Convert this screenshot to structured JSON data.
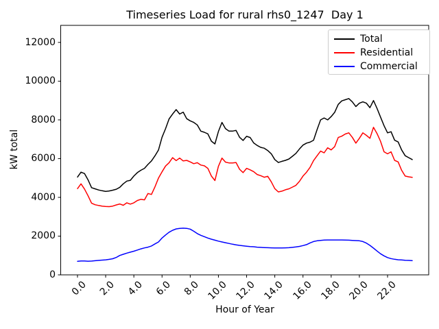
{
  "figure": {
    "background": "#ffffff",
    "axes_edge_color": "#000000",
    "legend_border_color": "#cccccc"
  },
  "chart_data": {
    "type": "line",
    "title": "Timeseries Load for rural rhs0_1247  Day 1",
    "xlabel": "Hour of Year",
    "ylabel": "kW total",
    "xlim": [
      -1.19,
      24.92
    ],
    "ylim": [
      0,
      12880
    ],
    "grid": false,
    "legend_position": "upper right",
    "xticks": {
      "values": [
        0,
        2,
        4,
        6,
        8,
        10,
        12,
        14,
        16,
        18,
        20,
        22
      ],
      "labels": [
        "0.0",
        "2.0",
        "4.0",
        "6.0",
        "8.0",
        "10.0",
        "12.0",
        "14.0",
        "16.0",
        "18.0",
        "20.0",
        "22.0"
      ],
      "rotation": 45
    },
    "yticks": {
      "values": [
        0,
        2000,
        4000,
        6000,
        8000,
        10000,
        12000
      ],
      "labels": [
        "0",
        "2000",
        "4000",
        "6000",
        "8000",
        "10000",
        "12000"
      ]
    },
    "x_start": 0,
    "x_step": 0.25,
    "x": [
      0,
      0.25,
      0.5,
      0.75,
      1,
      1.25,
      1.5,
      1.75,
      2,
      2.25,
      2.5,
      2.75,
      3,
      3.25,
      3.5,
      3.75,
      4,
      4.25,
      4.5,
      4.75,
      5,
      5.25,
      5.5,
      5.75,
      6,
      6.25,
      6.5,
      6.75,
      7,
      7.25,
      7.5,
      7.75,
      8,
      8.25,
      8.5,
      8.75,
      9,
      9.25,
      9.5,
      9.75,
      10,
      10.25,
      10.5,
      10.75,
      11,
      11.25,
      11.5,
      11.75,
      12,
      12.25,
      12.5,
      12.75,
      13,
      13.25,
      13.5,
      13.75,
      14,
      14.25,
      14.5,
      14.75,
      15,
      15.25,
      15.5,
      15.75,
      16,
      16.25,
      16.5,
      16.75,
      17,
      17.25,
      17.5,
      17.75,
      18,
      18.25,
      18.5,
      18.75,
      19,
      19.25,
      19.5,
      19.75,
      20,
      20.25,
      20.5,
      20.75,
      21,
      21.25,
      21.5,
      21.75,
      22,
      22.25,
      22.5,
      22.75,
      23,
      23.25,
      23.5,
      23.75
    ],
    "series": [
      {
        "name": "Total",
        "color": "#000000",
        "line_width": 1.5,
        "values": [
          5050,
          5300,
          5230,
          4900,
          4500,
          4440,
          4380,
          4340,
          4310,
          4330,
          4370,
          4420,
          4520,
          4700,
          4840,
          4880,
          5100,
          5280,
          5400,
          5500,
          5700,
          5880,
          6150,
          6450,
          7100,
          7550,
          8050,
          8300,
          8530,
          8300,
          8400,
          8060,
          7950,
          7870,
          7740,
          7420,
          7360,
          7280,
          6900,
          6760,
          7400,
          7870,
          7550,
          7420,
          7420,
          7460,
          7100,
          6940,
          7150,
          7090,
          6810,
          6680,
          6580,
          6540,
          6420,
          6250,
          5950,
          5800,
          5860,
          5910,
          5980,
          6120,
          6270,
          6500,
          6700,
          6800,
          6850,
          6950,
          7500,
          8000,
          8100,
          8000,
          8170,
          8390,
          8800,
          8980,
          9040,
          9100,
          8930,
          8690,
          8860,
          8930,
          8860,
          8630,
          9000,
          8600,
          8150,
          7700,
          7330,
          7390,
          6950,
          6860,
          6450,
          6150,
          6050,
          5950
        ]
      },
      {
        "name": "Residential",
        "color": "#ff0000",
        "line_width": 1.5,
        "values": [
          4450,
          4700,
          4430,
          4080,
          3700,
          3620,
          3580,
          3550,
          3530,
          3520,
          3550,
          3610,
          3660,
          3590,
          3720,
          3650,
          3720,
          3840,
          3900,
          3870,
          4200,
          4150,
          4550,
          5000,
          5320,
          5620,
          5790,
          6050,
          5900,
          6030,
          5880,
          5910,
          5830,
          5740,
          5790,
          5670,
          5630,
          5500,
          5100,
          4870,
          5600,
          6030,
          5820,
          5780,
          5780,
          5800,
          5450,
          5280,
          5500,
          5420,
          5330,
          5180,
          5120,
          5040,
          5090,
          4800,
          4450,
          4280,
          4320,
          4390,
          4440,
          4530,
          4620,
          4830,
          5100,
          5300,
          5550,
          5900,
          6150,
          6390,
          6300,
          6560,
          6450,
          6620,
          7090,
          7160,
          7270,
          7330,
          7100,
          6800,
          7050,
          7330,
          7200,
          7050,
          7620,
          7300,
          6900,
          6350,
          6250,
          6350,
          5910,
          5830,
          5400,
          5100,
          5060,
          5030
        ]
      },
      {
        "name": "Commercial",
        "color": "#0000ff",
        "line_width": 1.5,
        "values": [
          700,
          720,
          715,
          705,
          710,
          730,
          745,
          760,
          775,
          800,
          830,
          900,
          1000,
          1060,
          1120,
          1170,
          1220,
          1280,
          1340,
          1390,
          1430,
          1490,
          1600,
          1700,
          1900,
          2060,
          2200,
          2300,
          2370,
          2400,
          2410,
          2400,
          2360,
          2250,
          2130,
          2040,
          1970,
          1900,
          1840,
          1790,
          1740,
          1700,
          1660,
          1620,
          1580,
          1550,
          1520,
          1500,
          1480,
          1460,
          1450,
          1430,
          1420,
          1410,
          1400,
          1395,
          1390,
          1390,
          1390,
          1395,
          1400,
          1420,
          1440,
          1470,
          1510,
          1560,
          1650,
          1720,
          1760,
          1780,
          1795,
          1800,
          1800,
          1800,
          1800,
          1800,
          1795,
          1790,
          1780,
          1770,
          1760,
          1720,
          1640,
          1520,
          1380,
          1230,
          1090,
          980,
          890,
          840,
          805,
          780,
          768,
          755,
          745,
          735
        ]
      }
    ]
  }
}
